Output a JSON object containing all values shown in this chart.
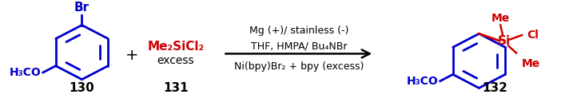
{
  "bg_color": "#ffffff",
  "blue": "#0000CC",
  "red": "#CC0000",
  "black": "#000000",
  "fig_width": 7.27,
  "fig_height": 1.28,
  "dpi": 100,
  "above_arrow_line1": "Mg (+)/ stainless (-)",
  "above_arrow_line2": "THF, HMPA/ Bu₄NBr",
  "below_arrow_line": "Ni(bpy)Br₂ + bpy (excess)",
  "label_130": "130",
  "label_131": "131",
  "label_132": "132",
  "label_excess": "excess",
  "plus_sign": "+",
  "reagent_red": "Me₂SiCl₂",
  "reactant1_br": "Br",
  "reactant1_h3co": "H₃CO",
  "product_h3co": "H₃CO",
  "product_me_top": "Me",
  "product_cl": "Cl",
  "product_si": "Si",
  "product_me_bot": "Me"
}
